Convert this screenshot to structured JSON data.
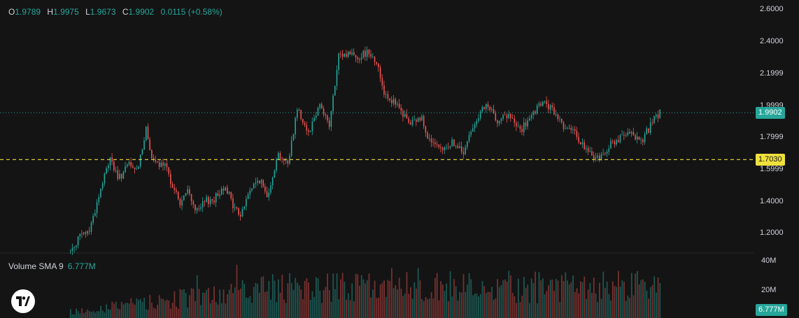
{
  "ohlc": {
    "o_label": "O",
    "o_value": "1.9789",
    "h_label": "H",
    "h_value": "1.9975",
    "l_label": "L",
    "l_value": "1.9673",
    "c_label": "C",
    "c_value": "1.9902",
    "change": "0.0115 (+0.58%)"
  },
  "volume_legend": {
    "label": "Volume SMA 9",
    "value": "6.777M"
  },
  "colors": {
    "background": "#141414",
    "up": "#26a69a",
    "down": "#ef5350",
    "text": "#d1d4dc",
    "last_price_line": "#26a69a",
    "horizontal_line": "#f0e03c"
  },
  "logo": {
    "icon": "tradingview-logo-icon"
  },
  "chart_data": [
    {
      "type": "line",
      "title": "",
      "price_axis_ticks": [
        "2.6000",
        "2.4000",
        "2.1999",
        "1.9999",
        "1.7999",
        "1.5999",
        "1.4000",
        "1.2000"
      ],
      "ylim": [
        1.13,
        2.63
      ],
      "key_points": [
        {
          "i": 0,
          "v": 1.14
        },
        {
          "i": 4,
          "v": 1.22
        },
        {
          "i": 10,
          "v": 1.27
        },
        {
          "i": 16,
          "v": 1.52
        },
        {
          "i": 21,
          "v": 1.72
        },
        {
          "i": 25,
          "v": 1.58
        },
        {
          "i": 31,
          "v": 1.67
        },
        {
          "i": 35,
          "v": 1.63
        },
        {
          "i": 40,
          "v": 1.88
        },
        {
          "i": 44,
          "v": 1.68
        },
        {
          "i": 50,
          "v": 1.66
        },
        {
          "i": 54,
          "v": 1.55
        },
        {
          "i": 58,
          "v": 1.43
        },
        {
          "i": 62,
          "v": 1.51
        },
        {
          "i": 67,
          "v": 1.38
        },
        {
          "i": 72,
          "v": 1.45
        },
        {
          "i": 76,
          "v": 1.46
        },
        {
          "i": 82,
          "v": 1.55
        },
        {
          "i": 86,
          "v": 1.42
        },
        {
          "i": 90,
          "v": 1.36
        },
        {
          "i": 95,
          "v": 1.52
        },
        {
          "i": 100,
          "v": 1.58
        },
        {
          "i": 104,
          "v": 1.48
        },
        {
          "i": 110,
          "v": 1.74
        },
        {
          "i": 115,
          "v": 1.67
        },
        {
          "i": 120,
          "v": 2.02
        },
        {
          "i": 126,
          "v": 1.87
        },
        {
          "i": 132,
          "v": 2.05
        },
        {
          "i": 137,
          "v": 1.91
        },
        {
          "i": 142,
          "v": 2.33
        },
        {
          "i": 148,
          "v": 2.36
        },
        {
          "i": 152,
          "v": 2.33
        },
        {
          "i": 158,
          "v": 2.37
        },
        {
          "i": 162,
          "v": 2.3
        },
        {
          "i": 166,
          "v": 2.12
        },
        {
          "i": 172,
          "v": 2.04
        },
        {
          "i": 180,
          "v": 1.92
        },
        {
          "i": 186,
          "v": 1.96
        },
        {
          "i": 190,
          "v": 1.82
        },
        {
          "i": 196,
          "v": 1.75
        },
        {
          "i": 202,
          "v": 1.81
        },
        {
          "i": 208,
          "v": 1.74
        },
        {
          "i": 214,
          "v": 1.94
        },
        {
          "i": 220,
          "v": 2.03
        },
        {
          "i": 226,
          "v": 1.95
        },
        {
          "i": 232,
          "v": 1.97
        },
        {
          "i": 238,
          "v": 1.88
        },
        {
          "i": 244,
          "v": 1.96
        },
        {
          "i": 250,
          "v": 2.06
        },
        {
          "i": 256,
          "v": 1.99
        },
        {
          "i": 262,
          "v": 1.9
        },
        {
          "i": 268,
          "v": 1.85
        },
        {
          "i": 274,
          "v": 1.74
        },
        {
          "i": 280,
          "v": 1.71
        },
        {
          "i": 286,
          "v": 1.8
        },
        {
          "i": 292,
          "v": 1.84
        },
        {
          "i": 298,
          "v": 1.86
        },
        {
          "i": 302,
          "v": 1.81
        },
        {
          "i": 308,
          "v": 1.93
        },
        {
          "i": 312,
          "v": 1.99
        }
      ],
      "last_price": 1.9902,
      "last_price_label": "1.9902",
      "horizontal_line_price": 1.703,
      "horizontal_line_label": "1.7030"
    },
    {
      "type": "bar",
      "title": "",
      "volume_axis_ticks": [
        "40M",
        "20M"
      ],
      "ylim": [
        0,
        44
      ],
      "sma_value": 6.777,
      "sma_label": "6.777M"
    }
  ]
}
